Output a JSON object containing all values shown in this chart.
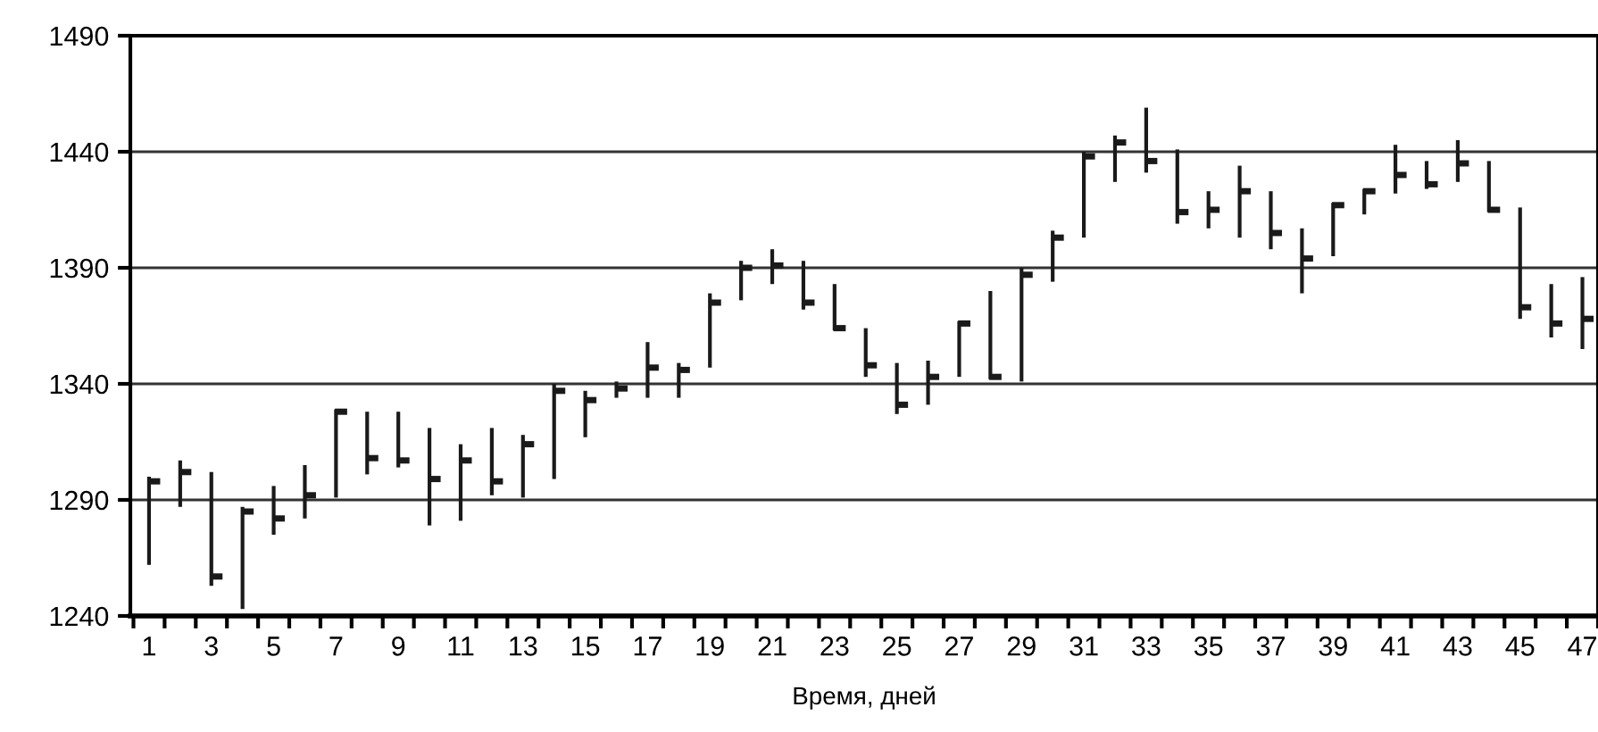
{
  "chart_data": {
    "type": "bar",
    "xlabel": "Время, дней",
    "categories": [
      "1",
      null,
      "3",
      null,
      "5",
      null,
      "7",
      null,
      "9",
      null,
      "11",
      null,
      "13",
      null,
      "15",
      null,
      "17",
      null,
      "19",
      null,
      "21",
      null,
      "23",
      null,
      "25",
      null,
      "27",
      null,
      "29",
      null,
      "31",
      null,
      "33",
      null,
      "35",
      null,
      "37",
      null,
      "39",
      null,
      "41",
      null,
      "43",
      null,
      "45",
      null,
      "47"
    ],
    "series": [
      {
        "color": "#1a1a1a",
        "base": [
          1262,
          1287,
          1253,
          1243,
          1275,
          1282,
          1291,
          1301,
          1304,
          1279,
          1281,
          1292,
          1291,
          1299,
          1317,
          1334,
          1334,
          1334,
          1347,
          1376,
          1383,
          1372,
          1363,
          1343,
          1327,
          1331,
          1343,
          1342,
          1341,
          1384,
          1403,
          1427,
          1431,
          1409,
          1407,
          1403,
          1398,
          1379,
          1395,
          1413,
          1422,
          1424,
          1427,
          1414,
          1368,
          1360,
          1355
        ],
        "values": [
          38,
          20,
          49,
          44,
          21,
          23,
          38,
          27,
          24,
          42,
          33,
          29,
          27,
          41,
          20,
          7,
          24,
          15,
          32,
          17,
          15,
          21,
          20,
          21,
          22,
          19,
          24,
          38,
          49,
          22,
          37,
          20,
          28,
          32,
          16,
          31,
          25,
          28,
          23,
          11,
          21,
          12,
          18,
          22,
          48,
          23,
          31
        ]
      },
      {
        "type": "scatter",
        "color": "#1a1a1a",
        "values": [
          1298,
          1302,
          1257,
          1285,
          1282,
          1292,
          1328,
          1308,
          1307,
          1299,
          1307,
          1298,
          1314,
          1337,
          1333,
          1338,
          1347,
          1346,
          1375,
          1390,
          1391,
          1375,
          1364,
          1348,
          1331,
          1343,
          1366,
          1343,
          1387,
          1403,
          1438,
          1444,
          1436,
          1414,
          1415,
          1423,
          1405,
          1394,
          1417,
          1423,
          1430,
          1426,
          1435,
          1415,
          1373,
          1366,
          1368
        ]
      }
    ],
    "ylim": [
      1240,
      1490
    ],
    "yticks": [
      1240,
      1290,
      1340,
      1390,
      1440,
      1490
    ],
    "grid": "y"
  }
}
